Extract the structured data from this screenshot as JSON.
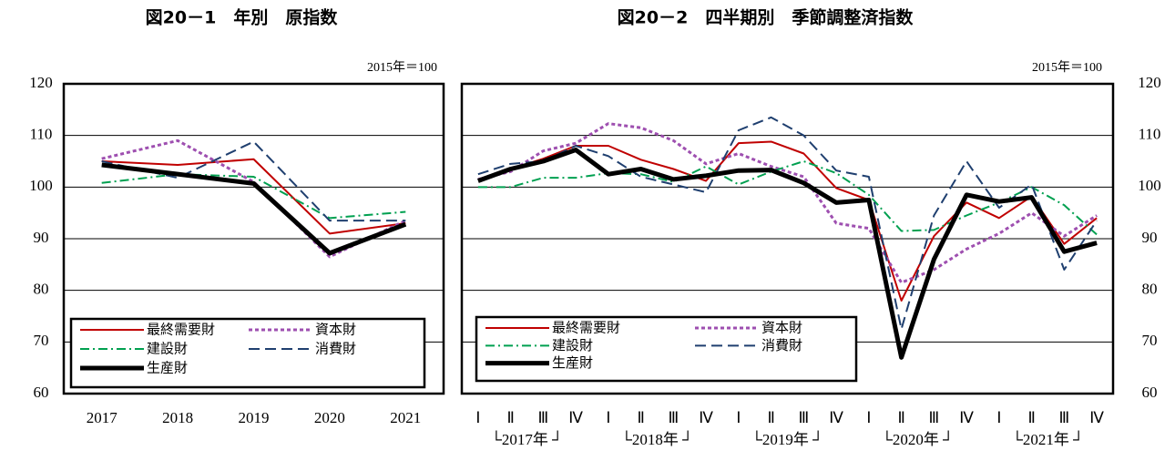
{
  "chart_data": [
    {
      "type": "line",
      "title": "図20－1　年別　原指数",
      "note": "2015年＝100",
      "categories": [
        "2017",
        "2018",
        "2019",
        "2020",
        "2021"
      ],
      "ylim": [
        60,
        120
      ],
      "yticks": [
        60,
        70,
        80,
        90,
        100,
        110,
        120
      ],
      "grid": true,
      "series": [
        {
          "name": "最終需要財",
          "color": "#c00000",
          "style": "solid",
          "values": [
            105,
            104.3,
            105.4,
            91,
            93
          ]
        },
        {
          "name": "資本財",
          "color": "#9e4fb0",
          "style": "dashed",
          "values": [
            105.5,
            109,
            101,
            86.5,
            93.5
          ]
        },
        {
          "name": "建設財",
          "color": "#00a050",
          "style": "dashdot",
          "values": [
            100.8,
            102.5,
            102,
            94,
            95.2
          ]
        },
        {
          "name": "消費財",
          "color": "#1f3f6f",
          "style": "longdash",
          "values": [
            105,
            101.8,
            108.8,
            93.5,
            93.5
          ]
        },
        {
          "name": "生産財",
          "color": "#000000",
          "style": "thick",
          "values": [
            104.3,
            102.5,
            100.7,
            87.2,
            92.8
          ]
        }
      ]
    },
    {
      "type": "line",
      "title": "図20－2　四半期別　季節調整済指数",
      "note": "2015年＝100",
      "categories": [
        "Ⅰ",
        "Ⅱ",
        "Ⅲ",
        "Ⅳ",
        "Ⅰ",
        "Ⅱ",
        "Ⅲ",
        "Ⅳ",
        "Ⅰ",
        "Ⅱ",
        "Ⅲ",
        "Ⅳ",
        "Ⅰ",
        "Ⅱ",
        "Ⅲ",
        "Ⅳ",
        "Ⅰ",
        "Ⅱ",
        "Ⅲ",
        "Ⅳ"
      ],
      "year_groups": [
        "└2017年 ┘",
        "└2018年 ┘",
        "└2019年 ┘",
        "└2020年 ┘",
        "└2021年 ┘"
      ],
      "ylim": [
        60,
        120
      ],
      "yticks": [
        60,
        70,
        80,
        90,
        100,
        110,
        120
      ],
      "grid": true,
      "series": [
        {
          "name": "最終需要財",
          "color": "#c00000",
          "style": "solid",
          "values": [
            101.5,
            103.5,
            105.5,
            108,
            108,
            105.3,
            103.5,
            101.2,
            108.5,
            108.8,
            106.5,
            99.8,
            97.5,
            78,
            90.5,
            97,
            94,
            98.2,
            89,
            94
          ]
        },
        {
          "name": "資本財",
          "color": "#9e4fb0",
          "style": "dashed",
          "values": [
            101.5,
            103,
            107,
            108.5,
            112.3,
            111.5,
            109,
            104.5,
            106.5,
            104,
            102,
            93,
            92,
            81.5,
            84,
            88,
            91,
            95,
            90.5,
            94.5
          ]
        },
        {
          "name": "建設財",
          "color": "#00a050",
          "style": "dashdot",
          "values": [
            100,
            100,
            101.8,
            101.8,
            102.7,
            102.5,
            101,
            104,
            100.5,
            103,
            105,
            102.7,
            98.5,
            91.5,
            91.7,
            94.5,
            97,
            100,
            96.5,
            90.8
          ]
        },
        {
          "name": "消費財",
          "color": "#1f3f6f",
          "style": "longdash",
          "values": [
            102.5,
            104.5,
            105,
            108,
            106,
            102,
            100.5,
            99,
            111,
            113.5,
            110,
            103.2,
            102,
            72.5,
            94.5,
            105,
            96,
            100.5,
            84,
            93.5
          ]
        },
        {
          "name": "生産財",
          "color": "#000000",
          "style": "thick",
          "values": [
            101.2,
            103.5,
            105,
            107.2,
            102.5,
            103.5,
            101.5,
            102.2,
            103.2,
            103.3,
            100.8,
            97,
            97.5,
            67,
            86,
            98.5,
            97.2,
            98,
            87.5,
            89.2
          ]
        }
      ]
    }
  ]
}
